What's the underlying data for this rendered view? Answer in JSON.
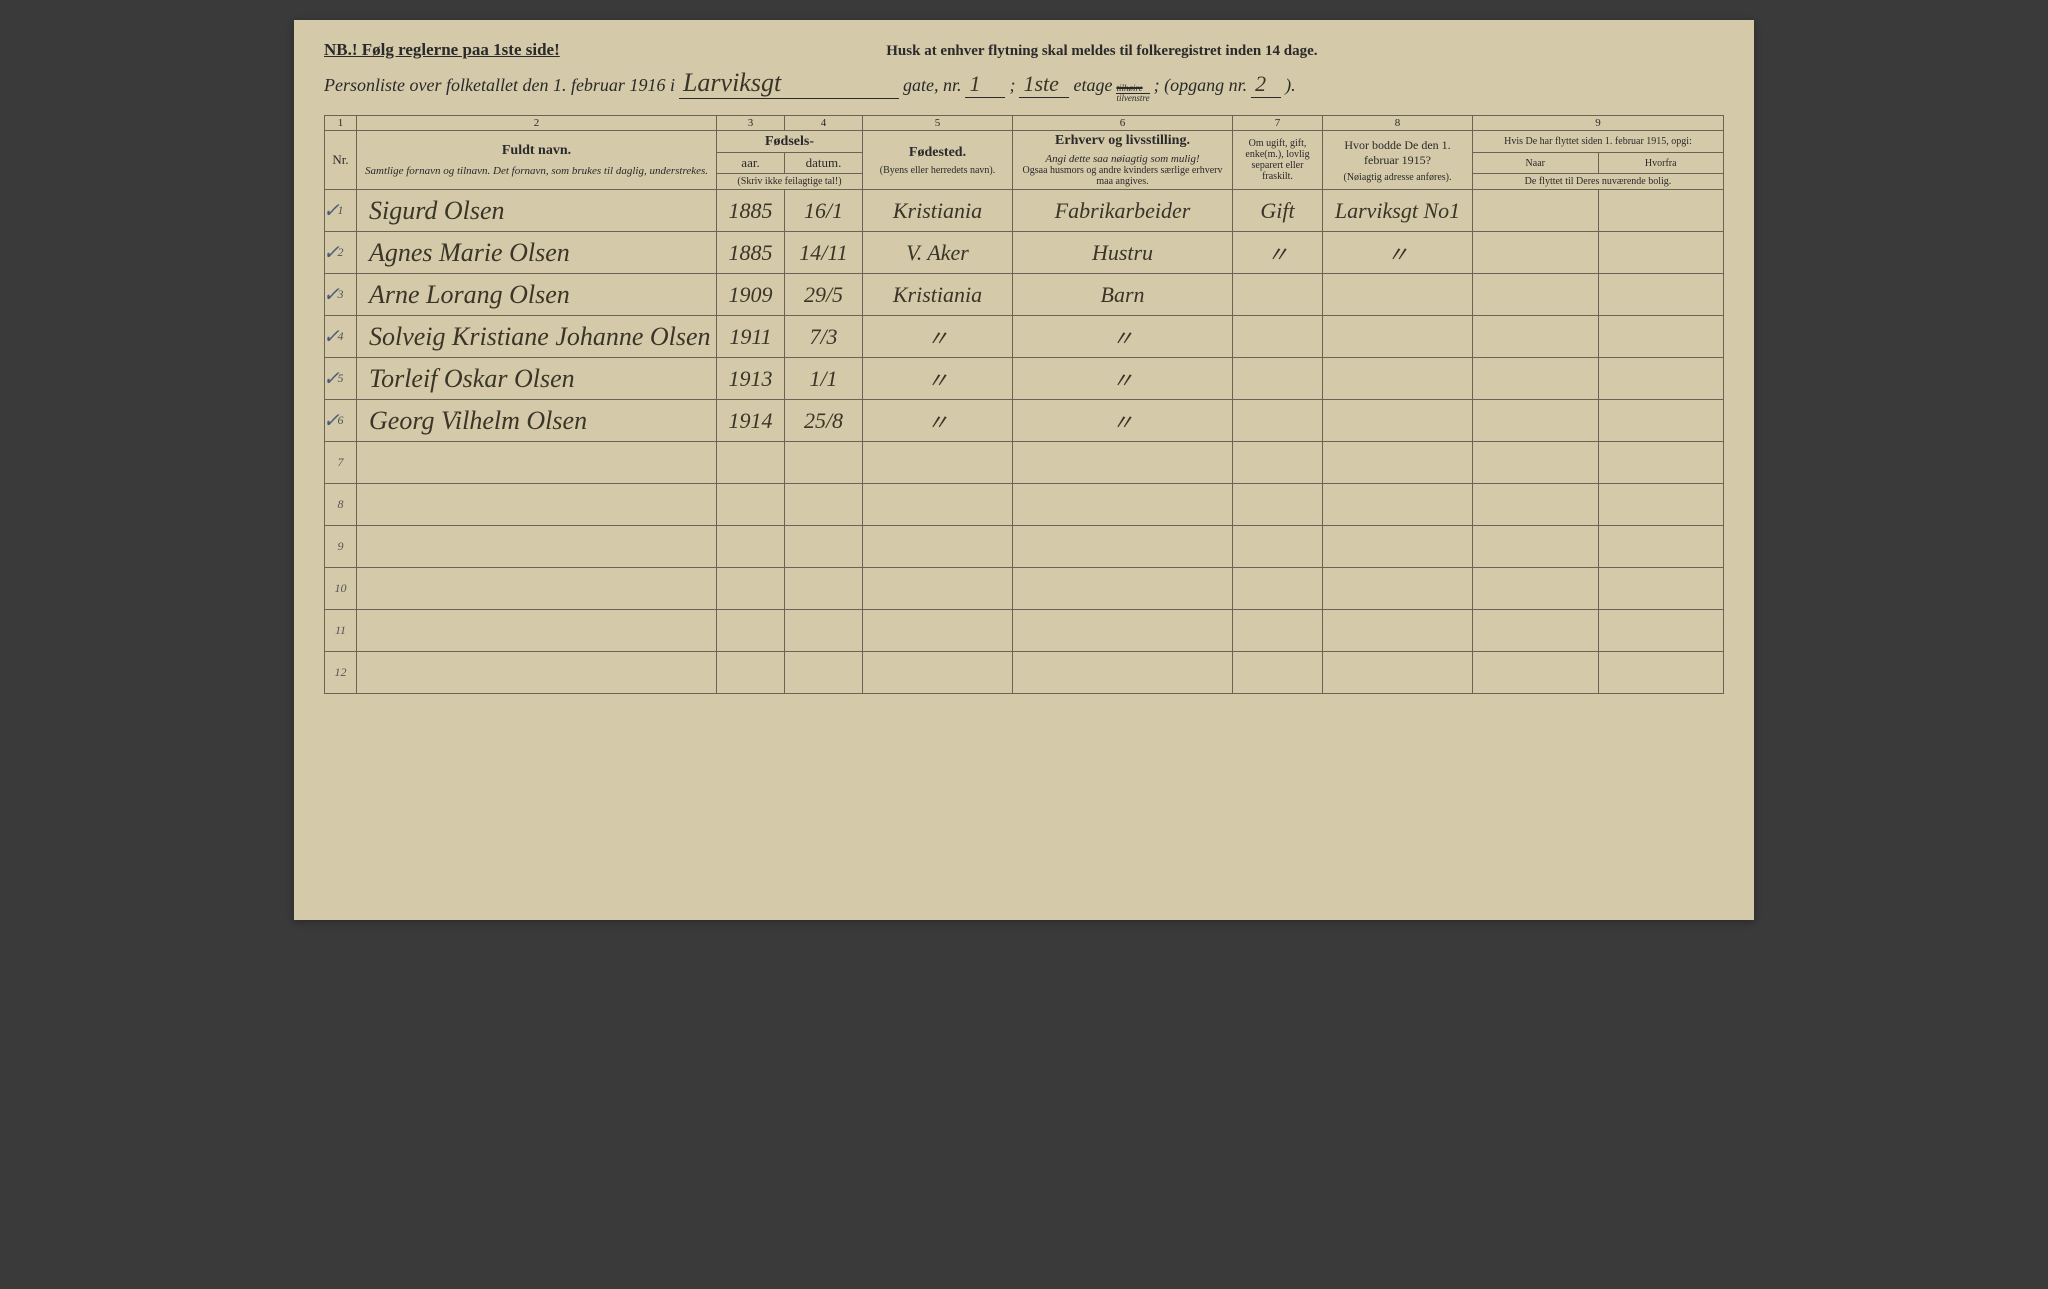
{
  "header": {
    "nb": "NB.! Følg reglerne paa 1ste side!",
    "husk": "Husk at enhver flytning skal meldes til folkeregistret inden 14 dage."
  },
  "title": {
    "prefix": "Personliste over folketallet den 1. februar 1916 i",
    "street": "Larviksgt",
    "gate_label": "gate, nr.",
    "gate_nr": "1",
    "etage_val": "1ste",
    "etage_label": "etage",
    "fraction_top": "tilhøire",
    "fraction_bot": "tilvenstre",
    "opgang_label": "; (opgang nr.",
    "opgang_nr": "2",
    "closing": ")."
  },
  "columns": {
    "nums": [
      "1",
      "2",
      "3",
      "4",
      "5",
      "6",
      "7",
      "8",
      "9"
    ],
    "nr": "Nr.",
    "name_main": "Fuldt navn.",
    "name_sub": "Samtlige fornavn og tilnavn. Det fornavn, som brukes til daglig, understrekes.",
    "birth_main": "Fødsels-",
    "year": "aar.",
    "date": "datum.",
    "year_note": "(Skriv ikke feilagtige tal!)",
    "place_main": "Fødested.",
    "place_sub": "(Byens eller herredets navn).",
    "occ_main": "Erhverv og livsstilling.",
    "occ_sub1": "Angi dette saa nøiagtig som mulig!",
    "occ_sub2": "Ogsaa husmors og andre kvinders særlige erhverv maa angives.",
    "marital": "Om ugift, gift, enke(m.), lovlig separert eller fraskilt.",
    "prev_main": "Hvor bodde De den 1. februar 1915?",
    "prev_sub": "(Nøiagtig adresse anføres).",
    "moved_main": "Hvis De har flyttet siden 1. februar 1915, opgi:",
    "moved_when": "Naar",
    "moved_from": "Hvorfra",
    "moved_sub": "De flyttet til Deres nuværende bolig."
  },
  "rows": [
    {
      "nr": "1",
      "check": true,
      "name": "Sigurd Olsen",
      "year": "1885",
      "date": "16/1",
      "place": "Kristiania",
      "occ": "Fabrikarbeider",
      "marital": "Gift",
      "prev": "Larviksgt No1"
    },
    {
      "nr": "2",
      "check": true,
      "name": "Agnes Marie Olsen",
      "year": "1885",
      "date": "14/11",
      "place": "V. Aker",
      "occ": "Hustru",
      "marital": "〃",
      "prev": "〃"
    },
    {
      "nr": "3",
      "check": true,
      "name": "Arne Lorang Olsen",
      "year": "1909",
      "date": "29/5",
      "place": "Kristiania",
      "occ": "Barn",
      "marital": "",
      "prev": ""
    },
    {
      "nr": "4",
      "check": true,
      "name": "Solveig Kristiane Johanne Olsen",
      "year": "1911",
      "date": "7/3",
      "place": "〃",
      "occ": "〃",
      "marital": "",
      "prev": ""
    },
    {
      "nr": "5",
      "check": true,
      "name": "Torleif Oskar Olsen",
      "year": "1913",
      "date": "1/1",
      "place": "〃",
      "occ": "〃",
      "marital": "",
      "prev": ""
    },
    {
      "nr": "6",
      "check": true,
      "name": "Georg Vilhelm Olsen",
      "year": "1914",
      "date": "25/8",
      "place": "〃",
      "occ": "〃",
      "marital": "",
      "prev": ""
    },
    {
      "nr": "7",
      "check": false,
      "name": "",
      "year": "",
      "date": "",
      "place": "",
      "occ": "",
      "marital": "",
      "prev": ""
    },
    {
      "nr": "8",
      "check": false,
      "name": "",
      "year": "",
      "date": "",
      "place": "",
      "occ": "",
      "marital": "",
      "prev": ""
    },
    {
      "nr": "9",
      "check": false,
      "name": "",
      "year": "",
      "date": "",
      "place": "",
      "occ": "",
      "marital": "",
      "prev": ""
    },
    {
      "nr": "10",
      "check": false,
      "name": "",
      "year": "",
      "date": "",
      "place": "",
      "occ": "",
      "marital": "",
      "prev": ""
    },
    {
      "nr": "11",
      "check": false,
      "name": "",
      "year": "",
      "date": "",
      "place": "",
      "occ": "",
      "marital": "",
      "prev": ""
    },
    {
      "nr": "12",
      "check": false,
      "name": "",
      "year": "",
      "date": "",
      "place": "",
      "occ": "",
      "marital": "",
      "prev": ""
    }
  ]
}
